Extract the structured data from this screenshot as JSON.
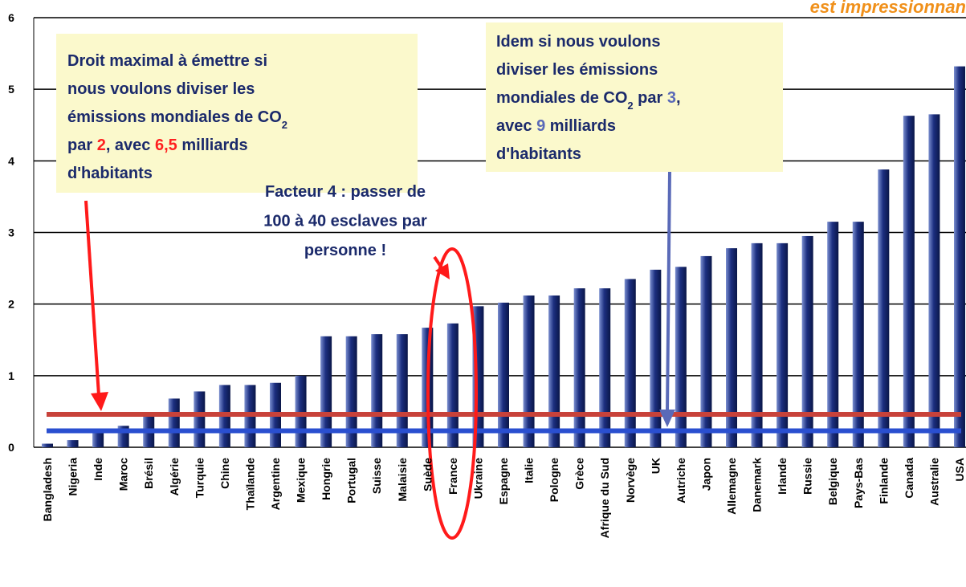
{
  "chart_data": {
    "type": "bar",
    "title": "est impressionnan",
    "categories": [
      "Bangladesh",
      "Nigeria",
      "Inde",
      "Maroc",
      "Brésil",
      "Algérie",
      "Turquie",
      "Chine",
      "Thaïlande",
      "Argentine",
      "Mexique",
      "Hongrie",
      "Portugal",
      "Suisse",
      "Malaisie",
      "Suède",
      "France",
      "Ukraine",
      "Espagne",
      "Italie",
      "Pologne",
      "Grèce",
      "Afrique du Sud",
      "Norvège",
      "UK",
      "Autriche",
      "Japon",
      "Allemagne",
      "Danemark",
      "Irlande",
      "Russie",
      "Belgique",
      "Pays-Bas",
      "Finlande",
      "Canada",
      "Australie",
      "USA"
    ],
    "values": [
      0.05,
      0.1,
      0.25,
      0.3,
      0.45,
      0.68,
      0.78,
      0.87,
      0.87,
      0.9,
      1.0,
      1.55,
      1.55,
      1.58,
      1.58,
      1.67,
      1.73,
      1.97,
      2.02,
      2.12,
      2.12,
      2.22,
      2.22,
      2.35,
      2.48,
      2.52,
      2.67,
      2.78,
      2.85,
      2.85,
      2.95,
      3.15,
      3.15,
      3.88,
      4.63,
      4.65,
      5.32
    ],
    "ylim": [
      0,
      6
    ],
    "yticks": [
      0,
      1,
      2,
      3,
      4,
      5,
      6
    ],
    "grid": true,
    "reference_lines": [
      {
        "value": 0.46,
        "color": "#c8423a"
      },
      {
        "value": 0.23,
        "color": "#2a4fd0"
      }
    ],
    "annotations": [
      {
        "lines": [
          [
            {
              "text": "Droit maximal à émettre si"
            }
          ],
          [
            {
              "text": "nous voulons diviser les"
            }
          ],
          [
            {
              "text": "émissions mondiales de CO"
            },
            {
              "text": "2",
              "sub": true
            }
          ],
          [
            {
              "text": "par "
            },
            {
              "text": "2",
              "color": "#ff2020"
            },
            {
              "text": ", avec "
            },
            {
              "text": "6,5",
              "color": "#ff2020"
            },
            {
              "text": " milliards"
            }
          ],
          [
            {
              "text": "d'habitants"
            }
          ]
        ]
      },
      {
        "lines": [
          [
            {
              "text": "Idem si nous voulons"
            }
          ],
          [
            {
              "text": "diviser les émissions"
            }
          ],
          [
            {
              "text": "mondiales de CO"
            },
            {
              "text": "2",
              "sub": true
            },
            {
              "text": " par "
            },
            {
              "text": "3",
              "color": "#5a6ab8"
            },
            {
              "text": ","
            }
          ],
          [
            {
              "text": "avec "
            },
            {
              "text": "9",
              "color": "#5a6ab8"
            },
            {
              "text": " milliards"
            }
          ],
          [
            {
              "text": "d'habitants"
            }
          ]
        ]
      },
      {
        "color": "#ff1a1a",
        "lines": [
          [
            {
              "text": "Facteur 4 : passer de"
            }
          ],
          [
            {
              "text": "100 à 40 esclaves par"
            }
          ],
          [
            {
              "text": "personne !"
            }
          ]
        ]
      }
    ]
  }
}
